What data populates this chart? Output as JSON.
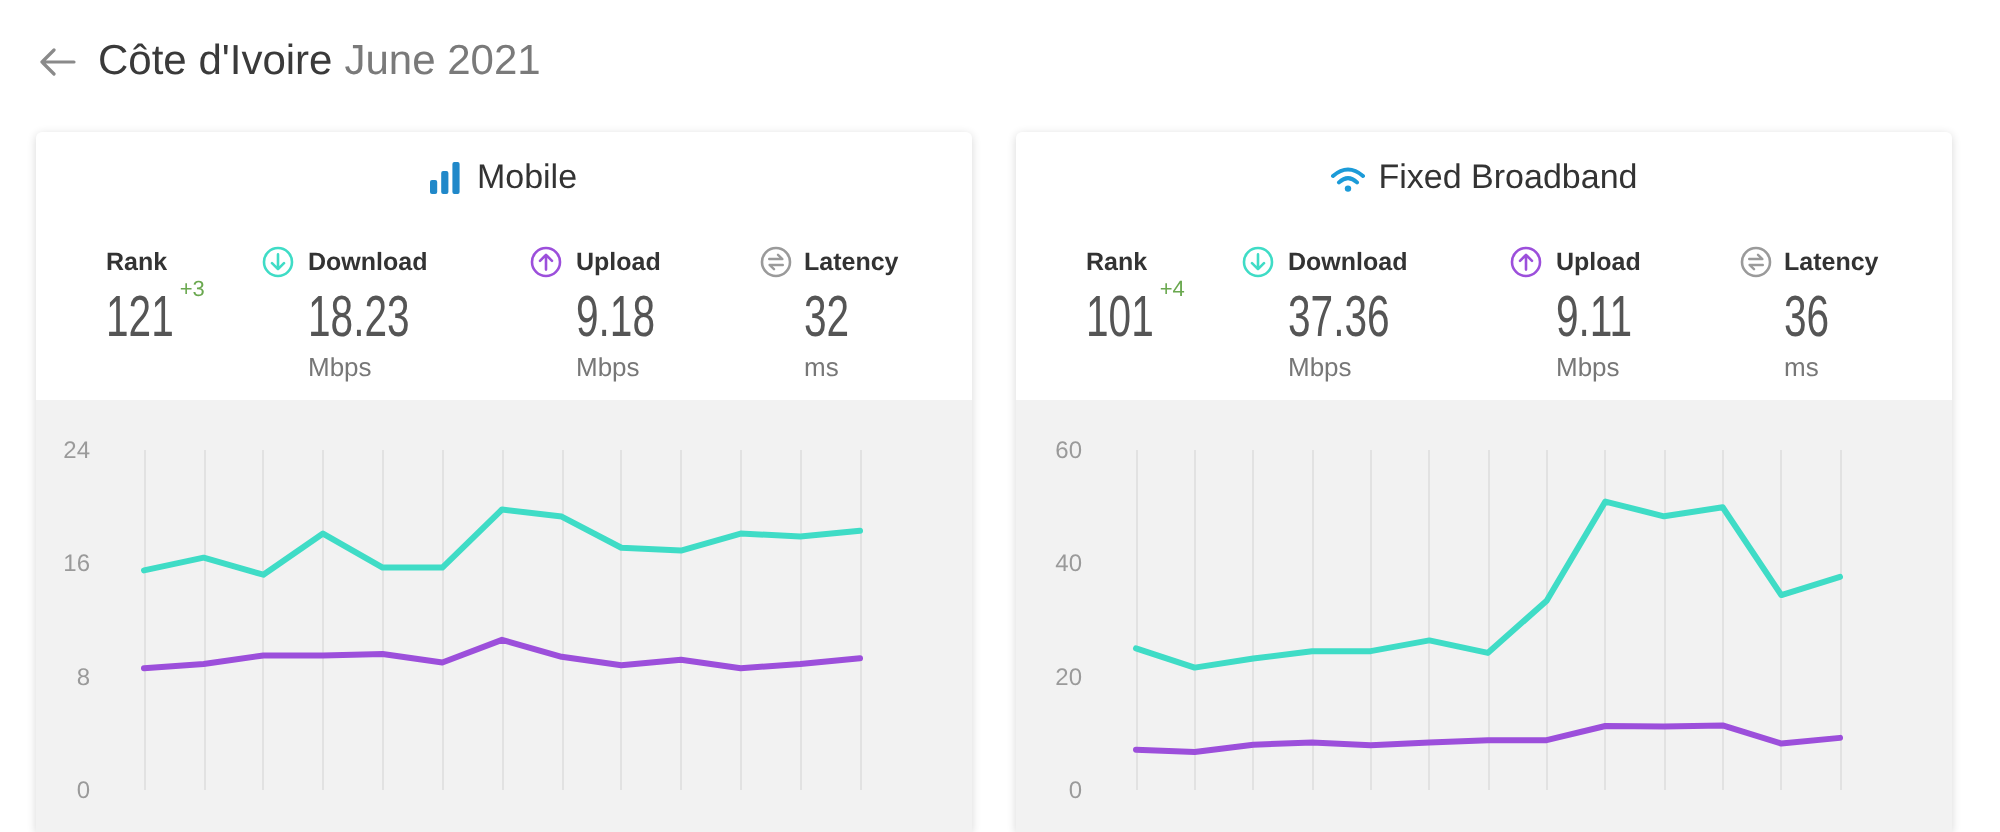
{
  "chart_data": [
    {
      "type": "other",
      "title": "Côte d'Ivoire",
      "subtitle": "June 2021"
    },
    {
      "type": "line",
      "title": "Mobile",
      "annotations": [
        "Rank",
        "121",
        "+3",
        "Download",
        "18.23",
        "Mbps",
        "Upload",
        "9.18",
        "Mbps",
        "Latency",
        "32",
        "ms"
      ],
      "categories": [
        null,
        null,
        null,
        null,
        null,
        null,
        null,
        null,
        null,
        null,
        null,
        null,
        null
      ],
      "series": [
        {
          "color": "#3fdcc6",
          "values": [
            15.5,
            16.4,
            15.2,
            18.1,
            15.7,
            15.7,
            19.8,
            19.3,
            17.1,
            16.9,
            18.1,
            17.9,
            18.3
          ]
        },
        {
          "color": "#9c4fdb",
          "values": [
            8.6,
            8.9,
            9.5,
            9.5,
            9.6,
            9.0,
            10.6,
            9.4,
            8.8,
            9.2,
            8.6,
            8.9,
            9.3
          ]
        }
      ],
      "ylim": [
        0,
        24
      ],
      "yticks": [
        0,
        8,
        16,
        24
      ],
      "grid": "x",
      "tick_labels": "y",
      "marker": "none"
    },
    {
      "type": "line",
      "title": "Fixed Broadband",
      "annotations": [
        "Rank",
        "101",
        "+4",
        "Download",
        "37.36",
        "Mbps",
        "Upload",
        "9.11",
        "Mbps",
        "Latency",
        "36",
        "ms"
      ],
      "categories": [
        null,
        null,
        null,
        null,
        null,
        null,
        null,
        null,
        null,
        null,
        null,
        null,
        null
      ],
      "series": [
        {
          "color": "#3fdcc6",
          "values": [
            25,
            21.6,
            23.2,
            24.5,
            24.5,
            26.4,
            24.2,
            33.4,
            50.9,
            48.3,
            49.9,
            34.4,
            37.6
          ]
        },
        {
          "color": "#9c4fdb",
          "values": [
            7.1,
            6.7,
            8.0,
            8.4,
            7.9,
            8.4,
            8.8,
            8.8,
            11.3,
            11.2,
            11.4,
            8.2,
            9.2
          ]
        }
      ],
      "ylim": [
        0,
        60
      ],
      "yticks": [
        0,
        20,
        40,
        60
      ],
      "grid": "x",
      "tick_labels": "y",
      "marker": "none"
    }
  ]
}
